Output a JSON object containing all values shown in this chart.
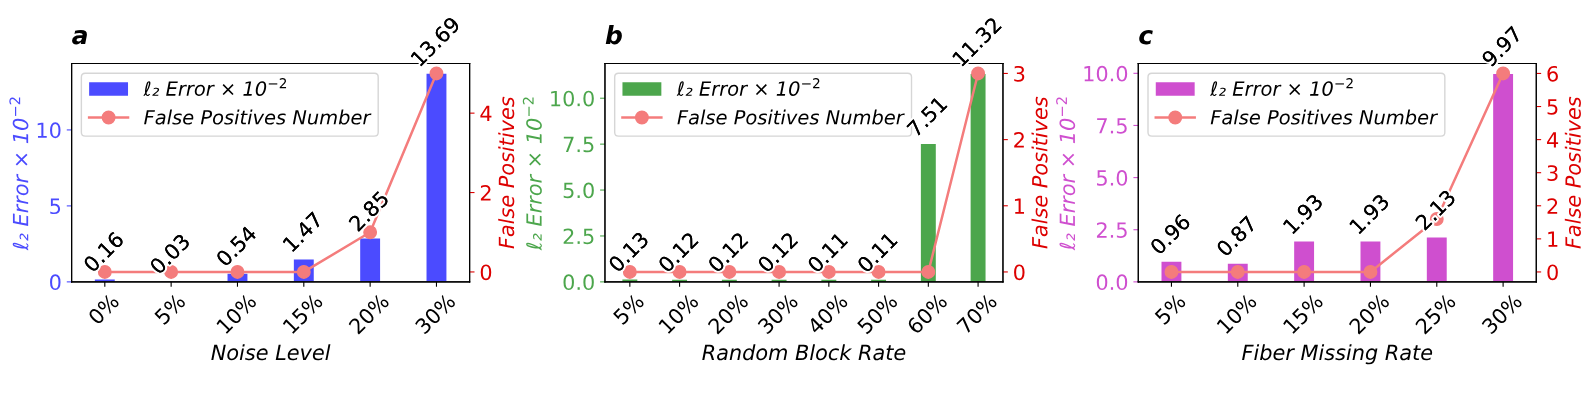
{
  "chart_data": [
    {
      "type": "bar",
      "title": "a",
      "xlabel": "Noise Level",
      "ylabel": "ℓ₂ Error × 10$^{−2}$",
      "y2label": "False Positives",
      "categories": [
        "0%",
        "5%",
        "10%",
        "15%",
        "20%",
        "30%"
      ],
      "series": [
        {
          "name": "ℓ₂ Error × 10$^{−2}$",
          "color": "#4b4bff",
          "values": [
            0.16,
            0.03,
            0.54,
            1.47,
            2.85,
            13.69
          ],
          "value_labels": [
            "0.16",
            "0.03",
            "0.54",
            "1.47",
            "2.85",
            "13.69"
          ]
        },
        {
          "type": "line",
          "axis": "y2",
          "name": "False Positives Number",
          "color": "#f47c7c",
          "marker": "circle",
          "values": [
            0,
            0,
            0,
            0,
            1,
            5
          ]
        }
      ],
      "ylim": [
        0,
        14.37
      ],
      "yticks": [
        0,
        5,
        10
      ],
      "y2lim": [
        -0.25,
        5.25
      ],
      "y2ticks": [
        0,
        2,
        4
      ],
      "legend": "top left",
      "grid": false
    },
    {
      "type": "bar",
      "title": "b",
      "xlabel": "Random Block Rate",
      "ylabel": "ℓ₂ Error × 10$^{−2}$",
      "y2label": "False Positives",
      "categories": [
        "5%",
        "10%",
        "20%",
        "30%",
        "40%",
        "50%",
        "60%",
        "70%"
      ],
      "series": [
        {
          "name": "ℓ₂ Error × 10$^{−2}$",
          "color": "#4ca64c",
          "values": [
            0.13,
            0.12,
            0.12,
            0.12,
            0.11,
            0.11,
            7.51,
            11.32
          ],
          "value_labels": [
            "0.13",
            "0.12",
            "0.12",
            "0.12",
            "0.11",
            "0.11",
            "7.51",
            "11.32"
          ]
        },
        {
          "type": "line",
          "axis": "y2",
          "name": "False Positives Number",
          "color": "#f47c7c",
          "marker": "circle",
          "values": [
            0,
            0,
            0,
            0,
            0,
            0,
            0,
            3
          ]
        }
      ],
      "ylim": [
        0,
        11.89
      ],
      "yticks": [
        {
          "value": 0,
          "label": "0.0"
        },
        {
          "value": 2.5,
          "label": "2.5"
        },
        {
          "value": 5,
          "label": "5.0"
        },
        {
          "value": 7.5,
          "label": "7.5"
        },
        {
          "value": 10,
          "label": "10.0"
        }
      ],
      "y2lim": [
        -0.15,
        3.15
      ],
      "y2ticks": [
        0,
        1,
        2,
        3
      ],
      "legend": "top left",
      "grid": false
    },
    {
      "type": "bar",
      "title": "c",
      "xlabel": "Fiber Missing Rate",
      "ylabel": "ℓ₂ Error × 10$^{−2}$",
      "y2label": "False Positives",
      "categories": [
        "5%",
        "10%",
        "15%",
        "20%",
        "25%",
        "30%"
      ],
      "series": [
        {
          "name": "ℓ₂ Error × 10$^{−2}$",
          "color": "#cf4fcf",
          "values": [
            0.96,
            0.87,
            1.93,
            1.93,
            2.13,
            9.97
          ],
          "value_labels": [
            "0.96",
            "0.87",
            "1.93",
            "1.93",
            "2.13",
            "9.97"
          ]
        },
        {
          "type": "line",
          "axis": "y2",
          "name": "False Positives Number",
          "color": "#f47c7c",
          "marker": "circle",
          "values": [
            0,
            0,
            0,
            0,
            1.6,
            6
          ]
        }
      ],
      "ylim": [
        0,
        10.47
      ],
      "yticks": [
        {
          "value": 0,
          "label": "0.0"
        },
        {
          "value": 2.5,
          "label": "2.5"
        },
        {
          "value": 5,
          "label": "5.0"
        },
        {
          "value": 7.5,
          "label": "7.5"
        },
        {
          "value": 10,
          "label": "10.0"
        }
      ],
      "y2lim": [
        -0.3,
        6.3
      ],
      "y2ticks": [
        0,
        1,
        2,
        3,
        4,
        5,
        6
      ],
      "legend": "top left",
      "grid": false
    }
  ]
}
